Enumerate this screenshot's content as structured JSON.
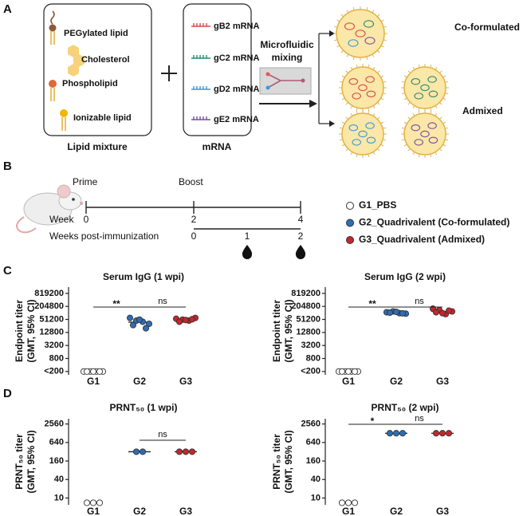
{
  "figure": {
    "panel_labels": [
      "A",
      "B",
      "C",
      "D"
    ],
    "lipid_mixture": {
      "items": [
        "PEGylated lipid",
        "Cholesterol",
        "Phospholipid",
        "Ionizable lipid"
      ],
      "caption": "Lipid mixture"
    },
    "mrna": {
      "items": [
        "gB2 mRNA",
        "gC2 mRNA",
        "gD2 mRNA",
        "gE2 mRNA"
      ],
      "caption": "mRNA"
    },
    "mixing": [
      "Microfluidic",
      "mixing"
    ],
    "outputs": [
      "Co-formulated",
      "Admixed"
    ],
    "schedule": {
      "prime": "Prime",
      "boost": "Boost",
      "week_label": "Week",
      "weeks": [
        0,
        2,
        4
      ],
      "wpi_label": "Weeks post-immunization",
      "wpi": [
        0,
        1,
        2
      ]
    }
  },
  "chart_data": [
    {
      "type": "scatter",
      "title": "Serum IgG (1 wpi)",
      "ylabel": [
        "Endpoint titer",
        "(GMT, 95% CI)"
      ],
      "categories": [
        "G1",
        "G2",
        "G3"
      ],
      "log": true,
      "ylim": [
        140,
        1600000
      ],
      "yticks": [
        {
          "value": 200,
          "label": "<200"
        },
        800,
        3200,
        12800,
        51200,
        204800,
        819200
      ],
      "significance": [
        "**",
        "ns"
      ],
      "series": [
        {
          "name": "G1_PBS",
          "color": "#ffffff",
          "values": [
            200,
            200,
            200,
            200,
            200,
            200,
            200
          ]
        },
        {
          "name": "G2_Quadrivalent (Co-formulated)",
          "color": "#2e6db4",
          "values": [
            60000,
            45000,
            40000,
            32000,
            28000,
            50000,
            20000
          ],
          "gmt": 38000
        },
        {
          "name": "G3_Quadrivalent (Admixed)",
          "color": "#c8252c",
          "values": [
            55000,
            50000,
            45000,
            60000,
            40000,
            48000,
            52000
          ],
          "gmt": 50000
        }
      ]
    },
    {
      "type": "scatter",
      "title": "Serum IgG (2 wpi)",
      "ylabel": [
        "Endpoint titer",
        "(GMT, 95% CI)"
      ],
      "categories": [
        "G1",
        "G2",
        "G3"
      ],
      "log": true,
      "ylim": [
        140,
        1600000
      ],
      "yticks": [
        {
          "value": 200,
          "label": "<200"
        },
        800,
        3200,
        12800,
        51200,
        204800,
        819200
      ],
      "significance": [
        "**",
        "ns"
      ],
      "series": [
        {
          "color": "#ffffff",
          "values": [
            200,
            200,
            200,
            200,
            200,
            200,
            200
          ]
        },
        {
          "color": "#2e6db4",
          "values": [
            110000,
            120000,
            100000,
            95000,
            105000,
            115000,
            98000
          ],
          "gmt": 106000
        },
        {
          "color": "#c8252c",
          "values": [
            160000,
            140000,
            90000,
            120000,
            110000,
            100000,
            130000
          ],
          "gmt": 120000
        }
      ]
    },
    {
      "type": "scatter",
      "title": "PRNT₅₀ (1 wpi)",
      "ylabel": [
        "PRNT₅₀ titer",
        "(GMT, 95% CI)"
      ],
      "categories": [
        "G1",
        "G2",
        "G3"
      ],
      "log": true,
      "ylim": [
        6,
        3800
      ],
      "yticks": [
        10,
        40,
        160,
        640,
        2560
      ],
      "significance": [
        null,
        "ns"
      ],
      "series": [
        {
          "color": "#ffffff",
          "values": [
            7,
            7,
            7
          ]
        },
        {
          "color": "#2e6db4",
          "values": [
            320,
            320
          ],
          "gmt": 320
        },
        {
          "color": "#c8252c",
          "values": [
            320,
            320,
            320
          ],
          "gmt": 320
        }
      ]
    },
    {
      "type": "scatter",
      "title": "PRNT₅₀ (2 wpi)",
      "ylabel": [
        "PRNT₅₀ titer",
        "(GMT, 95% CI)"
      ],
      "categories": [
        "G1",
        "G2",
        "G3"
      ],
      "log": true,
      "ylim": [
        6,
        3800
      ],
      "yticks": [
        10,
        40,
        160,
        640,
        2560
      ],
      "significance": [
        "*",
        "ns"
      ],
      "series": [
        {
          "color": "#ffffff",
          "values": [
            7,
            7,
            7
          ]
        },
        {
          "color": "#2e6db4",
          "values": [
            1280,
            1280,
            1280
          ],
          "gmt": 1280
        },
        {
          "color": "#c8252c",
          "values": [
            1280,
            1280,
            1280
          ],
          "gmt": 1280
        }
      ]
    }
  ]
}
